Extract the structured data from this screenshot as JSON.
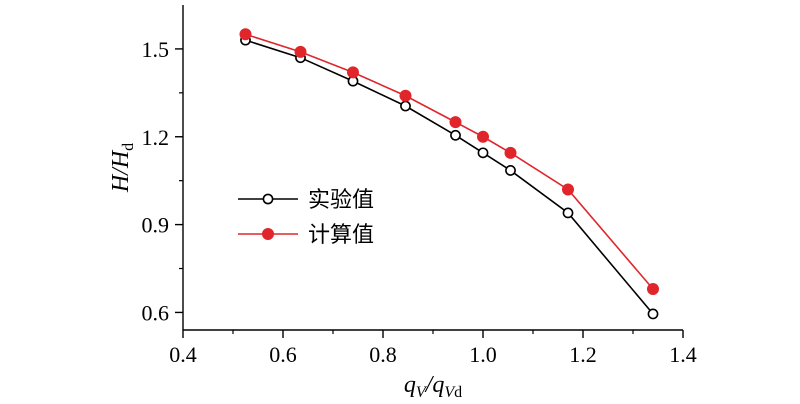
{
  "chart_data": {
    "type": "line",
    "title": "",
    "xlabel": "qV/qVd",
    "ylabel": "H/Hd",
    "xlim": [
      0.4,
      1.4
    ],
    "ylim": [
      0.54,
      1.65
    ],
    "xticks": [
      "0.4",
      "0.6",
      "0.8",
      "1.0",
      "1.2",
      "1.4"
    ],
    "yticks": [
      "0.6",
      "0.9",
      "1.2",
      "1.5"
    ],
    "grid": false,
    "legend_position": "center-left",
    "series": [
      {
        "name": "实验值",
        "marker": "open-circle",
        "color": "#000000",
        "x": [
          0.525,
          0.635,
          0.74,
          0.845,
          0.945,
          1.0,
          1.055,
          1.17,
          1.34
        ],
        "y": [
          1.53,
          1.47,
          1.39,
          1.305,
          1.205,
          1.145,
          1.085,
          0.94,
          0.595
        ]
      },
      {
        "name": "计算值",
        "marker": "filled-circle",
        "color": "#e0262b",
        "x": [
          0.525,
          0.635,
          0.74,
          0.845,
          0.945,
          1.0,
          1.055,
          1.17,
          1.34
        ],
        "y": [
          1.55,
          1.49,
          1.42,
          1.34,
          1.25,
          1.2,
          1.145,
          1.02,
          0.68
        ]
      }
    ]
  }
}
